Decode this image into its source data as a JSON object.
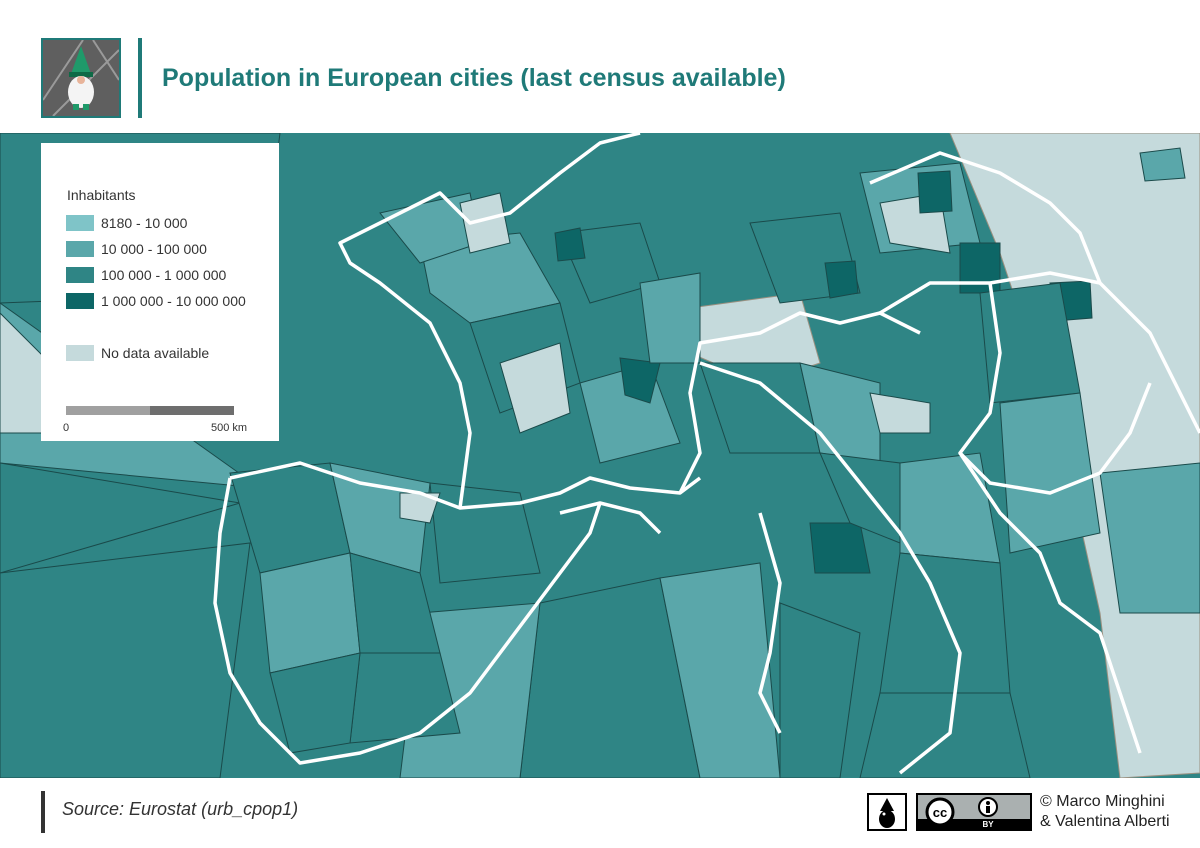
{
  "header": {
    "title": "Population in European cities (last census available)",
    "logo_icon": "gnome-logo-icon"
  },
  "legend": {
    "title": "Inhabitants",
    "classes": [
      {
        "label": "8180 - 10 000",
        "color": "#7fc4c8"
      },
      {
        "label": "10 000 - 100 000",
        "color": "#5aa7aa"
      },
      {
        "label": "100 000 - 1 000 000",
        "color": "#2f8585"
      },
      {
        "label": "1 000 000 - 10 000 000",
        "color": "#0d6666"
      }
    ],
    "no_data": {
      "label": "No data available",
      "color": "#c5dadc"
    },
    "scale": {
      "start": "0",
      "end": "500 km"
    }
  },
  "map": {
    "border_color": "#ffffff",
    "cell_line_color": "#1a4a4a"
  },
  "footer": {
    "source": "Source: Eurostat (urb_cpop1)",
    "credit_line1": "© Marco Minghini",
    "credit_line2": "& Valentina Alberti",
    "license_icon": "cc-by-icon",
    "cc_label": "cc",
    "by_label": "BY"
  }
}
